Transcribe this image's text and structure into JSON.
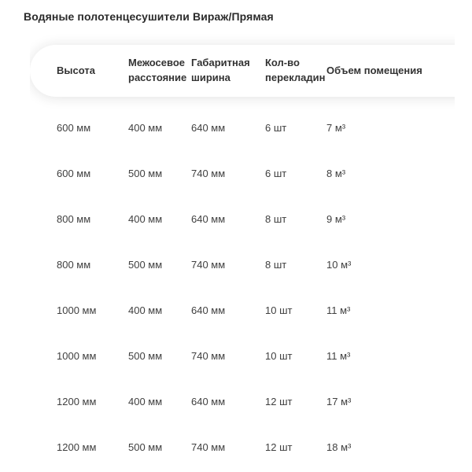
{
  "page": {
    "title": "Водяные полотенцесушители Вираж/Прямая"
  },
  "colors": {
    "title_text": "#2b2b2b",
    "header_text": "#333333",
    "cell_text": "#3f3f3f",
    "card_background": "#ffffff",
    "page_background": "#ffffff",
    "card_shadow": "rgba(34,34,34,0.13)"
  },
  "chart_data": {
    "type": "table",
    "title": "Водяные полотенцесушители Вираж/Прямая",
    "columns": [
      "Высота",
      "Межосевое расстояние",
      "Габаритная ширина",
      "Кол-во перекладин",
      "Объем помещения"
    ],
    "rows": [
      [
        "600 мм",
        "400 мм",
        "640 мм",
        "6 шт",
        "7 м³"
      ],
      [
        "600 мм",
        "500 мм",
        "740 мм",
        "6 шт",
        "8 м³"
      ],
      [
        "800 мм",
        "400 мм",
        "640 мм",
        "8 шт",
        "9 м³"
      ],
      [
        "800 мм",
        "500 мм",
        "740 мм",
        "8 шт",
        "10 м³"
      ],
      [
        "1000 мм",
        "400 мм",
        "640 мм",
        "10 шт",
        "11 м³"
      ],
      [
        "1000 мм",
        "500 мм",
        "740 мм",
        "10 шт",
        "11 м³"
      ],
      [
        "1200 мм",
        "400 мм",
        "640 мм",
        "12 шт",
        "17 м³"
      ],
      [
        "1200 мм",
        "500 мм",
        "740 мм",
        "12 шт",
        "18 м³"
      ]
    ]
  }
}
